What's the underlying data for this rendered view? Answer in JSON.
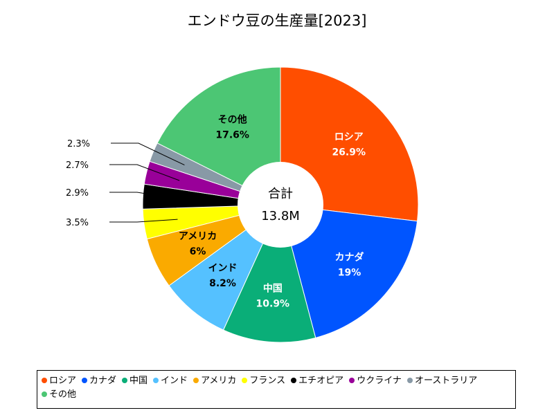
{
  "chart_data": {
    "type": "pie",
    "title": "エンドウ豆の生産量[2023]",
    "center_label": "合計",
    "center_value": "13.8M",
    "slices": [
      {
        "label": "ロシア",
        "value": 26.9,
        "value_label": "26.9%",
        "color": "#FF4E00"
      },
      {
        "label": "カナダ",
        "value": 19,
        "value_label": "19%",
        "color": "#0055FF"
      },
      {
        "label": "中国",
        "value": 10.9,
        "value_label": "10.9%",
        "color": "#0AAE78"
      },
      {
        "label": "インド",
        "value": 8.2,
        "value_label": "8.2%",
        "color": "#55C1FF"
      },
      {
        "label": "アメリカ",
        "value": 6,
        "value_label": "6%",
        "color": "#FAAA00"
      },
      {
        "label": "フランス",
        "value": 3.5,
        "value_label": "3.5%",
        "color": "#FFFF00"
      },
      {
        "label": "エチオピア",
        "value": 2.9,
        "value_label": "2.9%",
        "color": "#000000"
      },
      {
        "label": "ウクライナ",
        "value": 2.7,
        "value_label": "2.7%",
        "color": "#990099"
      },
      {
        "label": "オーストラリア",
        "value": 2.3,
        "value_label": "2.3%",
        "color": "#8899A6"
      },
      {
        "label": "その他",
        "value": 17.6,
        "value_label": "17.6%",
        "color": "#4CC674"
      }
    ],
    "legend_position": "bottom"
  }
}
